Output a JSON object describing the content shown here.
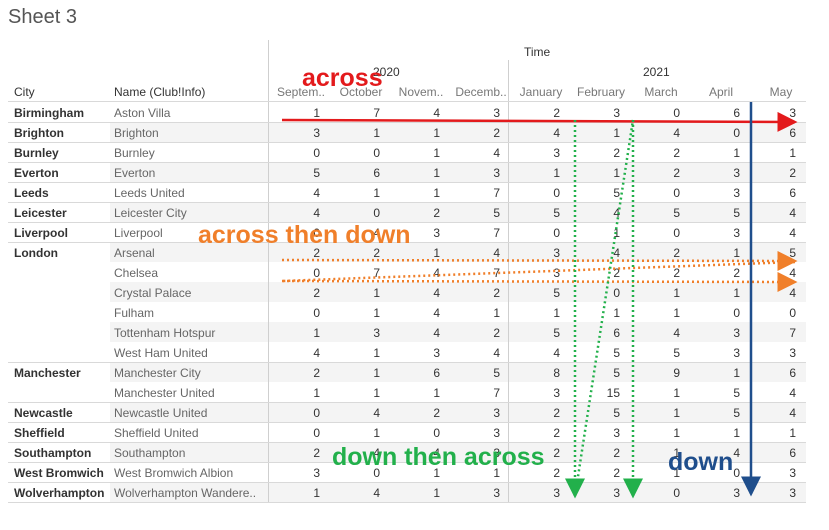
{
  "sheet_title": "Sheet 3",
  "header": {
    "time_label": "Time",
    "city_label": "City",
    "name_label": "Name (Club!Info)",
    "years": [
      "2020",
      "2021"
    ],
    "months": [
      "Septem..",
      "October",
      "Novem..",
      "Decemb..",
      "January",
      "February",
      "March",
      "April",
      "May"
    ]
  },
  "rows": [
    {
      "city": "Birmingham",
      "club": "Aston Villa",
      "values": [
        1,
        7,
        4,
        3,
        2,
        3,
        0,
        6,
        3
      ]
    },
    {
      "city": "Brighton",
      "club": "Brighton",
      "values": [
        3,
        1,
        1,
        2,
        4,
        1,
        4,
        0,
        6
      ]
    },
    {
      "city": "Burnley",
      "club": "Burnley",
      "values": [
        0,
        0,
        1,
        4,
        3,
        2,
        2,
        1,
        1
      ]
    },
    {
      "city": "Everton",
      "club": "Everton",
      "values": [
        5,
        6,
        1,
        3,
        1,
        1,
        2,
        3,
        2
      ]
    },
    {
      "city": "Leeds",
      "club": "Leeds United",
      "values": [
        4,
        1,
        1,
        7,
        0,
        5,
        0,
        3,
        6
      ]
    },
    {
      "city": "Leicester",
      "club": "Leicester City",
      "values": [
        4,
        0,
        2,
        5,
        5,
        4,
        5,
        5,
        4
      ]
    },
    {
      "city": "Liverpool",
      "club": "Liverpool",
      "values": [
        0,
        4,
        3,
        7,
        0,
        1,
        0,
        3,
        4
      ]
    },
    {
      "city": "London",
      "club": "Arsenal",
      "values": [
        2,
        2,
        1,
        4,
        3,
        4,
        2,
        1,
        5
      ]
    },
    {
      "city": "",
      "club": "Chelsea",
      "values": [
        0,
        7,
        4,
        7,
        3,
        2,
        2,
        2,
        4
      ]
    },
    {
      "city": "",
      "club": "Crystal Palace",
      "values": [
        2,
        1,
        4,
        2,
        5,
        0,
        1,
        1,
        4
      ]
    },
    {
      "city": "",
      "club": "Fulham",
      "values": [
        0,
        1,
        4,
        1,
        1,
        1,
        1,
        0,
        0
      ]
    },
    {
      "city": "",
      "club": "Tottenham Hotspur",
      "values": [
        1,
        3,
        4,
        2,
        5,
        6,
        4,
        3,
        7
      ]
    },
    {
      "city": "",
      "club": "West Ham United",
      "values": [
        4,
        1,
        3,
        4,
        4,
        5,
        5,
        3,
        3
      ]
    },
    {
      "city": "Manchester",
      "club": "Manchester City",
      "values": [
        2,
        1,
        6,
        5,
        8,
        5,
        9,
        1,
        6
      ]
    },
    {
      "city": "",
      "club": "Manchester United",
      "values": [
        1,
        1,
        1,
        7,
        3,
        15,
        1,
        5,
        4
      ]
    },
    {
      "city": "Newcastle",
      "club": "Newcastle United",
      "values": [
        0,
        4,
        2,
        3,
        2,
        5,
        1,
        5,
        4
      ]
    },
    {
      "city": "Sheffield",
      "club": "Sheffield United",
      "values": [
        0,
        1,
        0,
        3,
        2,
        3,
        1,
        1,
        1
      ]
    },
    {
      "city": "Southampton",
      "club": "Southampton",
      "values": [
        2,
        4,
        4,
        3,
        2,
        2,
        1,
        4,
        6
      ]
    },
    {
      "city": "West Bromwich",
      "club": "West Bromwich Albion",
      "values": [
        3,
        0,
        1,
        1,
        2,
        2,
        1,
        0,
        3
      ]
    },
    {
      "city": "Wolverhampton",
      "club": "Wolverhampton Wandere..",
      "values": [
        1,
        4,
        1,
        3,
        3,
        3,
        0,
        3,
        3
      ]
    }
  ],
  "annotations": {
    "across": {
      "text": "across",
      "color": "#e31a1c"
    },
    "across_then_down": {
      "text": "across then down",
      "color": "#f07f2a"
    },
    "down_then_across": {
      "text": "down then across",
      "color": "#22b04b"
    },
    "down": {
      "text": "down",
      "color": "#1f4e8c"
    }
  }
}
